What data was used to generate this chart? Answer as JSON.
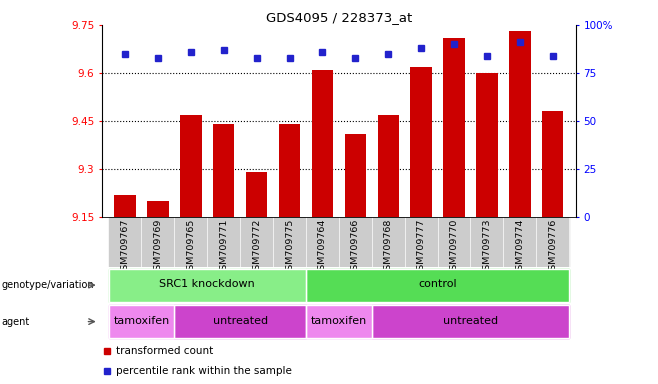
{
  "title": "GDS4095 / 228373_at",
  "samples": [
    "GSM709767",
    "GSM709769",
    "GSM709765",
    "GSM709771",
    "GSM709772",
    "GSM709775",
    "GSM709764",
    "GSM709766",
    "GSM709768",
    "GSM709777",
    "GSM709770",
    "GSM709773",
    "GSM709774",
    "GSM709776"
  ],
  "bar_values": [
    9.22,
    9.2,
    9.47,
    9.44,
    9.29,
    9.44,
    9.61,
    9.41,
    9.47,
    9.62,
    9.71,
    9.6,
    9.73,
    9.48
  ],
  "dot_values": [
    85,
    83,
    86,
    87,
    83,
    83,
    86,
    83,
    85,
    88,
    90,
    84,
    91,
    84
  ],
  "ymin": 9.15,
  "ymax": 9.75,
  "y2min": 0,
  "y2max": 100,
  "yticks": [
    9.15,
    9.3,
    9.45,
    9.6,
    9.75
  ],
  "y2ticks": [
    0,
    25,
    50,
    75,
    100
  ],
  "bar_color": "#cc0000",
  "dot_color": "#2222cc",
  "bg_color": "#ffffff",
  "genotype_groups": [
    {
      "label": "SRC1 knockdown",
      "start": 0,
      "end": 6,
      "color": "#88ee88"
    },
    {
      "label": "control",
      "start": 6,
      "end": 14,
      "color": "#55dd55"
    }
  ],
  "agent_groups": [
    {
      "label": "tamoxifen",
      "start": 0,
      "end": 2,
      "color": "#ee88ee"
    },
    {
      "label": "untreated",
      "start": 2,
      "end": 6,
      "color": "#cc44cc"
    },
    {
      "label": "tamoxifen",
      "start": 6,
      "end": 8,
      "color": "#ee88ee"
    },
    {
      "label": "untreated",
      "start": 8,
      "end": 14,
      "color": "#cc44cc"
    }
  ],
  "legend_items": [
    {
      "label": "transformed count",
      "color": "#cc0000"
    },
    {
      "label": "percentile rank within the sample",
      "color": "#2222cc"
    }
  ],
  "left_labels": [
    "genotype/variation",
    "agent"
  ],
  "grid_yticks": [
    9.3,
    9.45,
    9.6
  ],
  "tick_bg_color": "#cccccc"
}
